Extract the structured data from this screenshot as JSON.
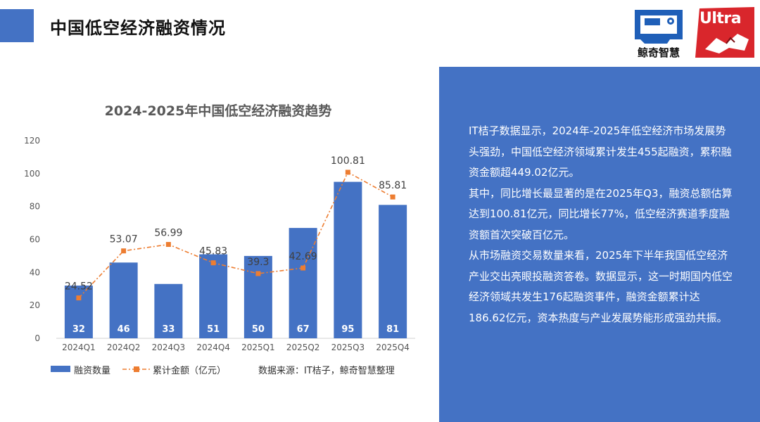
{
  "page": {
    "title": "中国低空经济融资情况"
  },
  "logos": {
    "whale_name": "鲸奇智慧",
    "ultra_name": "Ultra"
  },
  "chart_data": {
    "type": "bar",
    "title": "2024-2025年中国低空经济融资趋势",
    "categories": [
      "2024Q1",
      "2024Q2",
      "2024Q3",
      "2024Q4",
      "2025Q1",
      "2025Q2",
      "2025Q3",
      "2025Q4"
    ],
    "series": [
      {
        "name": "融资数量",
        "type": "bar",
        "color": "#4472c4",
        "values": [
          32,
          46,
          33,
          51,
          50,
          67,
          95,
          81
        ]
      },
      {
        "name": "累计金额（亿元）",
        "type": "line",
        "color": "#ed7d31",
        "values": [
          24.52,
          53.07,
          56.99,
          45.83,
          39.3,
          42.69,
          100.81,
          85.81
        ]
      }
    ],
    "ylim": [
      0,
      120
    ],
    "yticks": [
      "0",
      "20",
      "40",
      "60",
      "80",
      "100",
      "120"
    ],
    "grid": false,
    "legend": "bottom",
    "source_note": "数据来源：IT桔子，鲸奇智慧整理"
  },
  "panel": {
    "paragraphs": [
      "IT桔子数据显示，2024年-2025年低空经济市场发展势头强劲，中国低空经济领域累计发生455起融资，累积融资金额超449.02亿元。",
      "其中，同比增长最显著的是在2025年Q3，融资总额估算达到100.81亿元，同比增长77%，低空经济赛道季度融资额首次突破百亿元。",
      "从市场融资交易数量来看，2025年下半年我国低空经济产业交出亮眼投融资答卷。数据显示，这一时期国内低空经济领域共发生176起融资事件，融资金额累计达186.62亿元，资本热度与产业发展势能形成强劲共振。"
    ]
  }
}
